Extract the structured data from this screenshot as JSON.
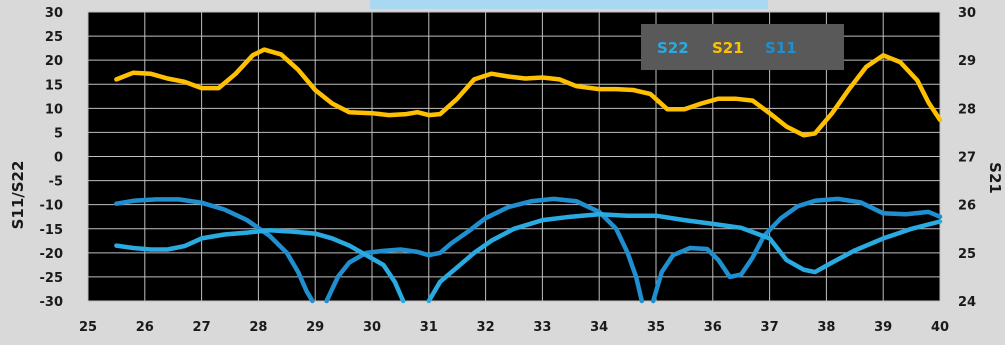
{
  "chart_data": {
    "type": "line",
    "x_range": [
      25,
      40
    ],
    "x_ticks": [
      "25",
      "26",
      "27",
      "28",
      "29",
      "30",
      "31",
      "32",
      "33",
      "34",
      "35",
      "36",
      "37",
      "38",
      "39",
      "40"
    ],
    "y_left": {
      "label": "S11/S22",
      "range": [
        -30,
        30
      ],
      "ticks": [
        "30",
        "25",
        "20",
        "15",
        "10",
        "5",
        "0",
        "-5",
        "-10",
        "-15",
        "-20",
        "-25",
        "-30"
      ]
    },
    "y_right": {
      "label": "S21",
      "range": [
        24,
        30
      ],
      "ticks": [
        "30",
        "29",
        "28",
        "27",
        "26",
        "25",
        "24"
      ]
    },
    "grid": true,
    "legend_position": "top-right",
    "legend": [
      "S22",
      "S21",
      "S11"
    ],
    "colors": {
      "S22": "#29abe2",
      "S21": "#ffc000",
      "S11": "#1f8fd0",
      "plot_bg": "#000000",
      "page_bg": "#d9d9d9",
      "legend_bg": "#595959",
      "grid": "#bfbfbf"
    },
    "series": [
      {
        "name": "S21",
        "axis": "right",
        "x": [
          25.5,
          25.8,
          26.1,
          26.4,
          26.7,
          27.0,
          27.3,
          27.6,
          27.9,
          28.1,
          28.4,
          28.7,
          29.0,
          29.3,
          29.6,
          30.0,
          30.3,
          30.6,
          30.8,
          31.0,
          31.2,
          31.5,
          31.8,
          32.1,
          32.4,
          32.7,
          33.0,
          33.3,
          33.6,
          34.0,
          34.3,
          34.6,
          34.9,
          35.2,
          35.5,
          35.8,
          36.1,
          36.4,
          36.7,
          37.0,
          37.3,
          37.6,
          37.8,
          38.1,
          38.4,
          38.7,
          39.0,
          39.3,
          39.6,
          39.8,
          40.0
        ],
        "y": [
          28.6,
          28.74,
          28.72,
          28.62,
          28.55,
          28.42,
          28.42,
          28.72,
          29.1,
          29.22,
          29.12,
          28.8,
          28.38,
          28.1,
          27.92,
          27.9,
          27.86,
          27.88,
          27.92,
          27.86,
          27.88,
          28.2,
          28.6,
          28.72,
          28.66,
          28.62,
          28.64,
          28.6,
          28.46,
          28.4,
          28.4,
          28.38,
          28.3,
          27.98,
          27.98,
          28.1,
          28.2,
          28.2,
          28.16,
          27.9,
          27.62,
          27.44,
          27.48,
          27.9,
          28.4,
          28.86,
          29.1,
          28.96,
          28.58,
          28.12,
          27.76
        ]
      },
      {
        "name": "S11",
        "axis": "left",
        "x": [
          25.5,
          25.8,
          26.2,
          26.6,
          27.0,
          27.4,
          27.8,
          28.2,
          28.5,
          28.7,
          28.85,
          28.95
        ],
        "y": [
          -9.8,
          -9.2,
          -8.9,
          -8.9,
          -9.6,
          -11.0,
          -13.2,
          -16.5,
          -20.0,
          -24.0,
          -28.0,
          -30.0
        ],
        "segments": [
          {
            "x": [
              25.5,
              25.8,
              26.2,
              26.6,
              27.0,
              27.4,
              27.8,
              28.2,
              28.5,
              28.7,
              28.85,
              28.95
            ],
            "y": [
              -9.8,
              -9.2,
              -8.9,
              -8.9,
              -9.6,
              -11.0,
              -13.2,
              -16.5,
              -20.0,
              -24.0,
              -28.0,
              -30.0
            ]
          },
          {
            "x": [
              29.2,
              29.4,
              29.6,
              29.9,
              30.2,
              30.5,
              30.8,
              31.0,
              31.2,
              31.4,
              31.7,
              32.0,
              32.4,
              32.8,
              33.2,
              33.6,
              34.0,
              34.3,
              34.5,
              34.65,
              34.75
            ],
            "y": [
              -30.0,
              -25.0,
              -22.0,
              -20.0,
              -19.6,
              -19.3,
              -19.8,
              -20.5,
              -20.0,
              -18.0,
              -15.5,
              -12.8,
              -10.5,
              -9.3,
              -8.8,
              -9.3,
              -11.5,
              -15.0,
              -20.0,
              -25.0,
              -30.0
            ]
          },
          {
            "x": [
              34.95,
              35.1,
              35.3,
              35.6,
              35.9,
              36.1,
              36.3,
              36.5,
              36.7,
              36.9,
              37.2,
              37.5,
              37.8,
              38.2,
              38.6,
              39.0,
              39.4,
              39.8,
              40.0
            ],
            "y": [
              -30.0,
              -24.0,
              -20.5,
              -19.0,
              -19.2,
              -21.5,
              -25.0,
              -24.5,
              -21.0,
              -16.5,
              -12.8,
              -10.3,
              -9.2,
              -8.8,
              -9.5,
              -11.8,
              -12.0,
              -11.5,
              -12.5
            ]
          }
        ]
      },
      {
        "name": "S22",
        "axis": "left",
        "x": [
          25.5,
          25.8,
          26.1,
          26.4,
          26.7,
          27.0,
          27.4,
          27.8,
          28.2,
          28.6,
          29.0,
          29.3,
          29.6,
          29.9,
          30.2,
          30.4,
          30.55
        ],
        "y": [
          -18.5,
          -19.0,
          -19.3,
          -19.3,
          -18.6,
          -17.0,
          -16.2,
          -15.8,
          -15.3,
          -15.6,
          -16.0,
          -17.0,
          -18.5,
          -20.5,
          -22.5,
          -26.0,
          -30.0
        ],
        "segments": [
          {
            "x": [
              25.5,
              25.8,
              26.1,
              26.4,
              26.7,
              27.0,
              27.4,
              27.8,
              28.2,
              28.6,
              29.0,
              29.3,
              29.6,
              29.9,
              30.2,
              30.4,
              30.55
            ],
            "y": [
              -18.5,
              -19.0,
              -19.3,
              -19.3,
              -18.6,
              -17.0,
              -16.2,
              -15.8,
              -15.3,
              -15.6,
              -16.0,
              -17.0,
              -18.5,
              -20.5,
              -22.5,
              -26.0,
              -30.0
            ]
          },
          {
            "x": [
              31.0,
              31.2,
              31.5,
              31.8,
              32.1,
              32.5,
              33.0,
              33.5,
              34.0,
              34.5,
              35.0,
              35.5,
              36.0,
              36.5,
              37.0,
              37.3,
              37.6,
              37.8,
              38.1,
              38.5,
              39.0,
              39.5,
              40.0
            ],
            "y": [
              -30.0,
              -26.0,
              -23.0,
              -20.0,
              -17.5,
              -15.0,
              -13.2,
              -12.5,
              -12.0,
              -12.3,
              -12.3,
              -13.2,
              -14.0,
              -14.8,
              -17.0,
              -21.5,
              -23.5,
              -24.0,
              -22.0,
              -19.5,
              -17.0,
              -15.0,
              -13.5
            ]
          }
        ]
      }
    ]
  }
}
